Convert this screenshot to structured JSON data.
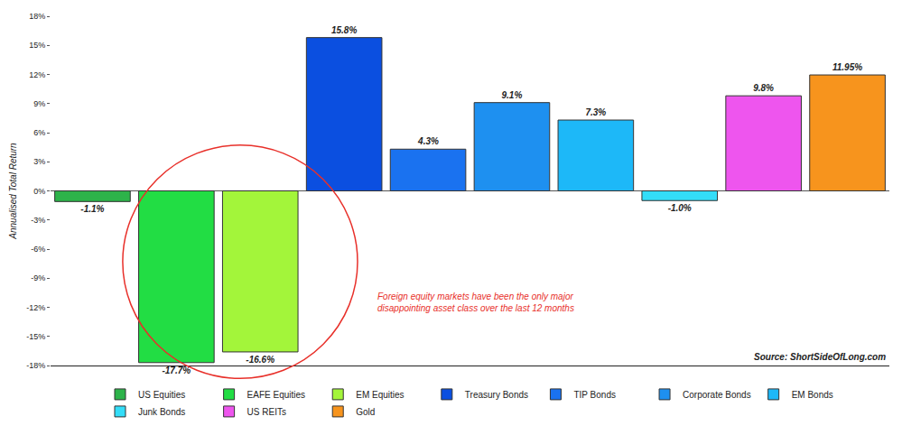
{
  "chart_data": {
    "type": "bar",
    "y_label": "Annualised Total Return",
    "categories": [
      "US Equities",
      "EAFE Equities",
      "EM Equities",
      "Treasury Bonds",
      "TIP Bonds",
      "Corporate Bonds",
      "EM Bonds",
      "Junk Bonds",
      "US REITs",
      "Gold"
    ],
    "values": [
      -1.1,
      -17.7,
      -16.6,
      15.8,
      4.3,
      9.1,
      7.3,
      -1.0,
      9.8,
      11.95
    ],
    "value_labels": [
      "-1.1%",
      "-17.7%",
      "-16.6%",
      "15.8%",
      "4.3%",
      "9.1%",
      "7.3%",
      "-1.0%",
      "9.8%",
      "11.95%"
    ],
    "colors": [
      "#2db34a",
      "#22dd44",
      "#a3f53a",
      "#0b4fe0",
      "#1a72f0",
      "#1e90f0",
      "#1db8f8",
      "#33ddf8",
      "#ee55ee",
      "#f7941d"
    ],
    "ylim": [
      -18,
      18
    ],
    "yticks": [
      {
        "value": -18,
        "label": "-18%"
      },
      {
        "value": -15,
        "label": "-15%"
      },
      {
        "value": -12,
        "label": "-12%"
      },
      {
        "value": -9,
        "label": "-9%"
      },
      {
        "value": -6,
        "label": "-6%"
      },
      {
        "value": -3,
        "label": "-3%"
      },
      {
        "value": 0,
        "label": "0%"
      },
      {
        "value": 3,
        "label": "3%"
      },
      {
        "value": 6,
        "label": "6%"
      },
      {
        "value": 9,
        "label": "9%"
      },
      {
        "value": 12,
        "label": "12%"
      },
      {
        "value": 15,
        "label": "15%"
      },
      {
        "value": 18,
        "label": "18%"
      }
    ],
    "grid": false,
    "data_labels": true,
    "tick_labels": "y",
    "legend": "bottom",
    "annotations": [
      {
        "text": [
          "Foreign equity markets have been the only major",
          "disappointing asset class over the last 12 months"
        ]
      },
      {
        "text": [
          "Source: ShortSideOfLong.com"
        ]
      }
    ]
  }
}
